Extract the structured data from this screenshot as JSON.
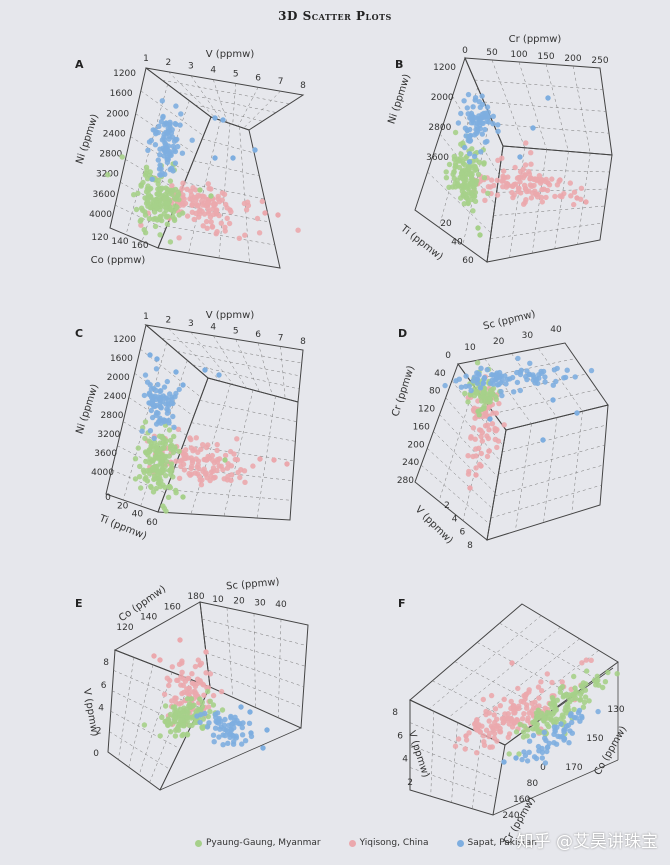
{
  "title": "3D Scatter Plots",
  "watermark": "知乎 @艾昊讲珠宝",
  "colors": {
    "green": "#a6d08a",
    "pink": "#eba8ad",
    "blue": "#7eaee0"
  },
  "legend": [
    {
      "label": "Pyaung-Gaung, Myanmar",
      "color": "#a6d08a"
    },
    {
      "label": "Yiqisong, China",
      "color": "#eba8ad"
    },
    {
      "label": "Sapat, Pakistan",
      "color": "#7eaee0"
    }
  ],
  "chart_data": [
    {
      "id": "A",
      "type": "scatter",
      "axes": {
        "x": {
          "label": "V (ppmw)",
          "ticks": [
            "1",
            "2",
            "3",
            "4",
            "5",
            "6",
            "7",
            "8"
          ]
        },
        "y": {
          "label": "Ni (ppmw)",
          "ticks": [
            "1200",
            "1600",
            "2000",
            "2400",
            "2800",
            "3200",
            "3600",
            "4000"
          ]
        },
        "z": {
          "label": "Co (ppmw)",
          "ticks": [
            "120",
            "140",
            "160"
          ]
        }
      },
      "series": [
        {
          "name": "Pyaung-Gaung, Myanmar",
          "color": "#a6d08a",
          "cloud": {
            "v": [
              1.2,
              2.2
            ],
            "ni": [
              3300,
              4000
            ],
            "co": [
              150,
              170
            ]
          }
        },
        {
          "name": "Yiqisong, China",
          "color": "#eba8ad",
          "cloud": {
            "v": [
              2.2,
              6.5
            ],
            "ni": [
              3400,
              4100
            ],
            "co": [
              150,
              170
            ]
          }
        },
        {
          "name": "Sapat, Pakistan",
          "color": "#7eaee0",
          "cloud": {
            "v": [
              1.2,
              5.5
            ],
            "ni": [
              2100,
              3000
            ],
            "co": [
              130,
              160
            ]
          }
        }
      ]
    },
    {
      "id": "B",
      "type": "scatter",
      "axes": {
        "x": {
          "label": "Cr (ppmw)",
          "ticks": [
            "0",
            "50",
            "100",
            "150",
            "200",
            "250"
          ]
        },
        "y": {
          "label": "Ni (ppmw)",
          "ticks": [
            "1200",
            "2000",
            "2800",
            "3600"
          ]
        },
        "z": {
          "label": "Ti (ppmw)",
          "ticks": [
            "20",
            "40",
            "60"
          ]
        }
      },
      "series": [
        {
          "name": "Pyaung-Gaung, Myanmar",
          "color": "#a6d08a",
          "cloud": {
            "cr": [
              5,
              30
            ],
            "ni": [
              3300,
              4100
            ],
            "ti": [
              20,
              50
            ]
          }
        },
        {
          "name": "Yiqisong, China",
          "color": "#eba8ad",
          "cloud": {
            "cr": [
              30,
              230
            ],
            "ni": [
              3400,
              4100
            ],
            "ti": [
              20,
              40
            ]
          }
        },
        {
          "name": "Sapat, Pakistan",
          "color": "#7eaee0",
          "cloud": {
            "cr": [
              5,
              60
            ],
            "ni": [
              2000,
              3000
            ],
            "ti": [
              20,
              40
            ]
          }
        }
      ]
    },
    {
      "id": "C",
      "type": "scatter",
      "axes": {
        "x": {
          "label": "V (ppmw)",
          "ticks": [
            "1",
            "2",
            "3",
            "4",
            "5",
            "6",
            "7",
            "8"
          ]
        },
        "y": {
          "label": "Ni (ppmw)",
          "ticks": [
            "1200",
            "1600",
            "2000",
            "2400",
            "2800",
            "3200",
            "3600",
            "4000"
          ]
        },
        "z": {
          "label": "Ti (ppmw)",
          "ticks": [
            "0",
            "20",
            "40",
            "60"
          ]
        }
      },
      "series": [
        {
          "name": "Pyaung-Gaung, Myanmar",
          "color": "#a6d08a",
          "cloud": {
            "v": [
              1,
              2.5
            ],
            "ni": [
              3200,
              4200
            ],
            "ti": [
              20,
              50
            ]
          }
        },
        {
          "name": "Yiqisong, China",
          "color": "#eba8ad",
          "cloud": {
            "v": [
              2.2,
              6.5
            ],
            "ni": [
              3300,
              4100
            ],
            "ti": [
              20,
              40
            ]
          }
        },
        {
          "name": "Sapat, Pakistan",
          "color": "#7eaee0",
          "cloud": {
            "v": [
              1,
              4.5
            ],
            "ni": [
              1800,
              2800
            ],
            "ti": [
              10,
              30
            ]
          }
        }
      ]
    },
    {
      "id": "D",
      "type": "scatter",
      "axes": {
        "x": {
          "label": "Sc (ppmw)",
          "ticks": [
            "10",
            "20",
            "30",
            "40"
          ]
        },
        "y": {
          "label": "Cr (ppmw)",
          "ticks": [
            "0",
            "40",
            "80",
            "120",
            "160",
            "200",
            "240",
            "280"
          ]
        },
        "z": {
          "label": "V (ppmw)",
          "ticks": [
            "2",
            "4",
            "6",
            "8"
          ]
        }
      },
      "series": [
        {
          "name": "Pyaung-Gaung, Myanmar",
          "color": "#a6d08a",
          "cloud": {
            "sc": [
              10,
              15
            ],
            "cr": [
              40,
              80
            ],
            "v": [
              1,
              3
            ]
          }
        },
        {
          "name": "Yiqisong, China",
          "color": "#eba8ad",
          "cloud": {
            "sc": [
              10,
              17
            ],
            "cr": [
              80,
              260
            ],
            "v": [
              2,
              6
            ]
          }
        },
        {
          "name": "Sapat, Pakistan",
          "color": "#7eaee0",
          "cloud": {
            "sc": [
              10,
              42
            ],
            "cr": [
              20,
              120
            ],
            "v": [
              1,
              5
            ]
          }
        }
      ]
    },
    {
      "id": "E",
      "type": "scatter",
      "axes": {
        "x": {
          "label": "Sc (ppmw)",
          "ticks": [
            "10",
            "20",
            "30",
            "40"
          ]
        },
        "y": {
          "label": "V (ppmw)",
          "ticks": [
            "0",
            "2",
            "4",
            "6",
            "8"
          ]
        },
        "z": {
          "label": "Co (ppmw)",
          "ticks": [
            "120",
            "140",
            "160",
            "180"
          ]
        }
      },
      "series": [
        {
          "name": "Pyaung-Gaung, Myanmar",
          "color": "#a6d08a",
          "cloud": {
            "sc": [
              10,
              15
            ],
            "v": [
              1,
              3
            ],
            "co": [
              150,
              170
            ]
          }
        },
        {
          "name": "Yiqisong, China",
          "color": "#eba8ad",
          "cloud": {
            "sc": [
              10,
              18
            ],
            "v": [
              2,
              7
            ],
            "co": [
              150,
              175
            ]
          }
        },
        {
          "name": "Sapat, Pakistan",
          "color": "#7eaee0",
          "cloud": {
            "sc": [
              12,
              40
            ],
            "v": [
              1,
              3
            ],
            "co": [
              130,
              160
            ]
          }
        }
      ]
    },
    {
      "id": "F",
      "type": "scatter",
      "axes": {
        "x": {
          "label": "Co (ppmw)",
          "ticks": [
            "130",
            "150",
            "170"
          ]
        },
        "y": {
          "label": "V (ppmw)",
          "ticks": [
            "2",
            "4",
            "6",
            "8"
          ]
        },
        "z": {
          "label": "Cr (ppmw)",
          "ticks": [
            "0",
            "80",
            "160",
            "240"
          ]
        }
      },
      "series": [
        {
          "name": "Pyaung-Gaung, Myanmar",
          "color": "#a6d08a",
          "cloud": {
            "co": [
              150,
              170
            ],
            "v": [
              1,
              3
            ],
            "cr": [
              5,
              40
            ]
          }
        },
        {
          "name": "Yiqisong, China",
          "color": "#eba8ad",
          "cloud": {
            "co": [
              150,
              175
            ],
            "v": [
              2,
              7
            ],
            "cr": [
              60,
              240
            ]
          }
        },
        {
          "name": "Sapat, Pakistan",
          "color": "#7eaee0",
          "cloud": {
            "co": [
              130,
              160
            ],
            "v": [
              1,
              4
            ],
            "cr": [
              5,
              60
            ]
          }
        }
      ]
    }
  ]
}
